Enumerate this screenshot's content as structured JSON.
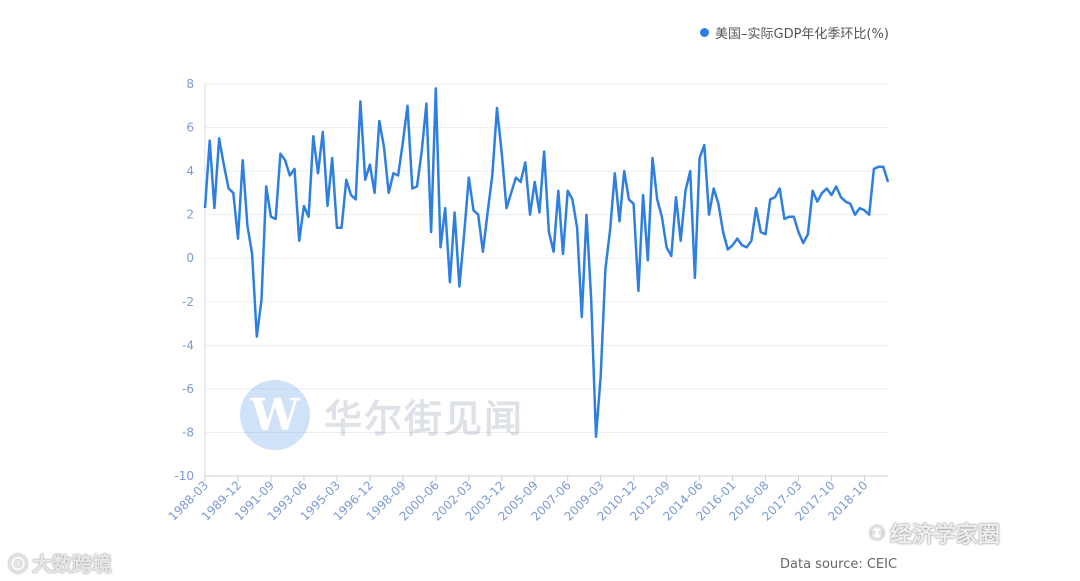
{
  "legend": {
    "label": "美国–实际GDP年化季环比(%)",
    "color": "#2f7fe0"
  },
  "watermark": {
    "icon_letter": "W",
    "text": "华尔街见闻",
    "bottom_left": "大数跨境",
    "bottom_right": "经济学家圈"
  },
  "source": "Data source: CEIC",
  "chart_data": {
    "type": "line",
    "ylim": [
      -10,
      8
    ],
    "yticks": [
      8,
      6,
      4,
      2,
      0,
      -2,
      -4,
      -6,
      -8,
      -10
    ],
    "xticklabels": [
      "1988-03",
      "1989-12",
      "1991-09",
      "1993-06",
      "1995-03",
      "1996-12",
      "1998-09",
      "2000-06",
      "2002-03",
      "2003-12",
      "2005-09",
      "2007-06",
      "2009-03",
      "2010-12",
      "2012-09",
      "2014-06",
      "2016-01",
      "2016-08",
      "2017-03",
      "2017-10",
      "2018-10"
    ],
    "xtick_index": [
      0,
      7,
      14,
      21,
      28,
      35,
      42,
      49,
      56,
      63,
      70,
      77,
      84,
      91,
      98,
      105,
      112,
      119,
      126,
      133,
      140
    ],
    "series": [
      {
        "values": [
          2.3,
          5.4,
          2.3,
          5.5,
          4.3,
          3.2,
          3.0,
          0.9,
          4.5,
          1.5,
          0.2,
          -3.6,
          -1.9,
          3.3,
          1.9,
          1.8,
          4.8,
          4.5,
          3.8,
          4.1,
          0.8,
          2.4,
          1.9,
          5.6,
          3.9,
          5.8,
          2.4,
          4.6,
          1.4,
          1.4,
          3.6,
          2.9,
          2.7,
          7.2,
          3.6,
          4.3,
          3.0,
          6.3,
          5.1,
          3.0,
          3.9,
          3.8,
          5.3,
          7.0,
          3.2,
          3.3,
          4.9,
          7.1,
          1.2,
          7.8,
          0.5,
          2.3,
          -1.1,
          2.1,
          -1.3,
          1.1,
          3.7,
          2.2,
          2.0,
          0.3,
          2.1,
          3.8,
          6.9,
          4.8,
          2.3,
          3.0,
          3.7,
          3.5,
          4.4,
          2.0,
          3.5,
          2.1,
          4.9,
          1.2,
          0.3,
          3.1,
          0.2,
          3.1,
          2.7,
          1.4,
          -2.7,
          2.0,
          -1.9,
          -8.2,
          -5.4,
          -0.5,
          1.3,
          3.9,
          1.7,
          4.0,
          2.7,
          2.5,
          -1.5,
          2.9,
          -0.1,
          4.6,
          2.7,
          1.9,
          0.5,
          0.1,
          2.8,
          0.8,
          3.1,
          4.0,
          -0.9,
          4.6,
          5.2,
          2.0,
          3.2,
          2.5,
          1.2,
          0.4,
          0.6,
          0.9,
          0.6,
          0.5,
          0.8,
          2.3,
          1.2,
          1.1,
          2.7,
          2.8,
          3.2,
          1.8,
          1.9,
          1.9,
          1.2,
          0.7,
          1.1,
          3.1,
          2.6,
          3.0,
          3.2,
          2.9,
          3.3,
          2.8,
          2.6,
          2.5,
          2.0,
          2.3,
          2.2,
          2.0,
          4.1,
          4.2,
          4.2,
          3.5
        ]
      }
    ]
  }
}
